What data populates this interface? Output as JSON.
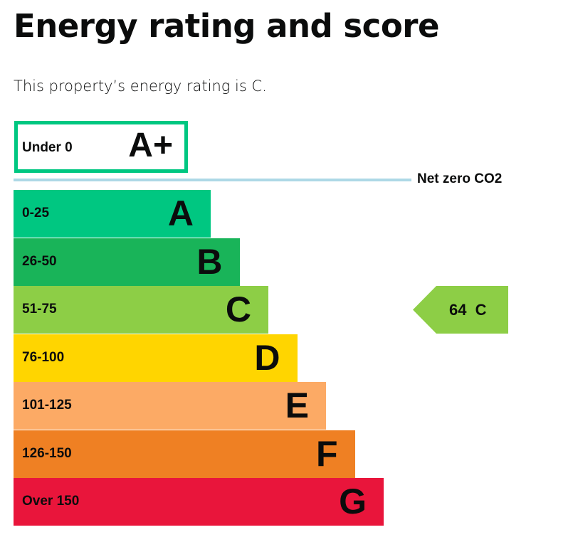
{
  "title": "Energy rating and score",
  "summary": "This property’s energy rating is C.",
  "aplus": {
    "range": "Under 0",
    "letter": "A+",
    "color": "#00c781"
  },
  "net_zero_label": "Net zero CO2",
  "bands": [
    {
      "range": "0-25",
      "letter": "A",
      "color": "#00c781"
    },
    {
      "range": "26-50",
      "letter": "B",
      "color": "#19b459"
    },
    {
      "range": "51-75",
      "letter": "C",
      "color": "#8dce46"
    },
    {
      "range": "76-100",
      "letter": "D",
      "color": "#ffd500"
    },
    {
      "range": "101-125",
      "letter": "E",
      "color": "#fcaa65"
    },
    {
      "range": "126-150",
      "letter": "F",
      "color": "#ef8023"
    },
    {
      "range": "Over 150",
      "letter": "G",
      "color": "#e9153b"
    }
  ],
  "current": {
    "score": "64",
    "letter": "C",
    "label": "64 C",
    "color": "#8dce46"
  }
}
